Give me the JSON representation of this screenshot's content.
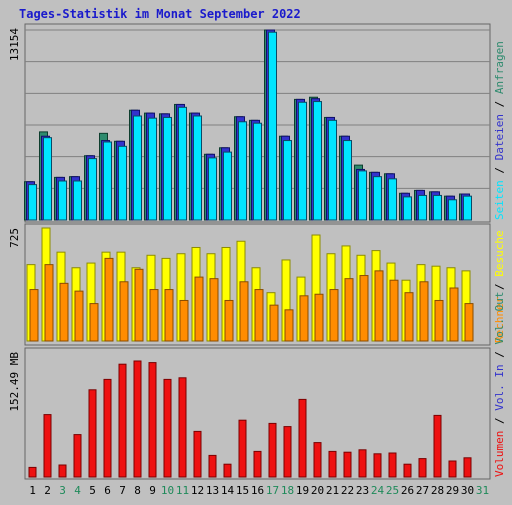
{
  "chart_data": {
    "title": "Tages-Statistik im Monat September 2022",
    "type": "bar",
    "x": [
      "1",
      "2",
      "3",
      "4",
      "5",
      "6",
      "7",
      "8",
      "9",
      "10",
      "11",
      "12",
      "13",
      "14",
      "15",
      "16",
      "17",
      "18",
      "19",
      "20",
      "21",
      "22",
      "23",
      "24",
      "25",
      "26",
      "27",
      "28",
      "29",
      "30",
      "31"
    ],
    "weekend_days": [
      3,
      4,
      10,
      11,
      17,
      18,
      24,
      25,
      31
    ],
    "panels": [
      {
        "ylabel": "13154",
        "ymax": 13154,
        "grid": true,
        "right_labels": [
          "Anfragen",
          "Dateien",
          "Seiten"
        ],
        "series": [
          {
            "name": "Anfragen",
            "color": "#2e8b6e",
            "values": [
              2650,
              6100,
              2950,
              3000,
              4450,
              6000,
              5450,
              7600,
              7400,
              7350,
              8000,
              7400,
              4550,
              5000,
              7150,
              6900,
              13154,
              5800,
              8350,
              8500,
              7100,
              5800,
              3800,
              3300,
              3200,
              1850,
              2050,
              1950,
              1650,
              1800,
              0
            ]
          },
          {
            "name": "Dateien",
            "color": "#3333cc",
            "values": [
              2650,
              5800,
              2950,
              3000,
              4450,
              5500,
              5450,
              7600,
              7400,
              7350,
              8000,
              7400,
              4550,
              5000,
              7150,
              6900,
              13154,
              5800,
              8350,
              8400,
              7100,
              5800,
              3500,
              3300,
              3200,
              1850,
              2050,
              1950,
              1650,
              1800,
              0
            ]
          },
          {
            "name": "Seiten",
            "color": "#00e5ff",
            "values": [
              2450,
              5700,
              2700,
              2700,
              4250,
              5400,
              5100,
              7200,
              7050,
              7100,
              7800,
              7200,
              4300,
              4700,
              6800,
              6700,
              13000,
              5500,
              8150,
              8200,
              6900,
              5500,
              3400,
              3000,
              2850,
              1600,
              1700,
              1700,
              1400,
              1650,
              0
            ]
          }
        ]
      },
      {
        "ylabel": "725",
        "ymax": 725,
        "grid": false,
        "right_labels": [
          "Besuche",
          "Rechner"
        ],
        "series": [
          {
            "name": "Besuche",
            "color": "#ffff00",
            "values": [
              490,
              725,
              570,
              470,
              500,
              570,
              570,
              470,
              550,
              530,
              560,
              600,
              560,
              600,
              640,
              470,
              310,
              520,
              410,
              680,
              560,
              610,
              550,
              580,
              500,
              390,
              490,
              480,
              470,
              450,
              0
            ]
          },
          {
            "name": "Rechner",
            "color": "#ff8c00",
            "values": [
              330,
              490,
              370,
              320,
              240,
              530,
              380,
              460,
              330,
              330,
              260,
              410,
              400,
              260,
              380,
              330,
              230,
              200,
              290,
              300,
              330,
              400,
              420,
              450,
              390,
              310,
              380,
              260,
              340,
              240,
              0
            ]
          }
        ]
      },
      {
        "ylabel": "152.49 MB",
        "ymax": 152.49,
        "grid": false,
        "right_labels": [
          "Vol. Out",
          "Vol. In",
          "Volumen"
        ],
        "series": [
          {
            "name": "Volumen",
            "color": "#ee1111",
            "values": [
              12,
              78,
              15,
              53,
              109,
              122,
              141,
              145,
              143,
              122,
              124,
              57,
              27,
              16,
              71,
              32,
              67,
              63,
              97,
              43,
              32,
              31,
              34,
              29,
              30,
              16,
              23,
              77,
              20,
              24,
              0
            ]
          }
        ]
      }
    ]
  }
}
